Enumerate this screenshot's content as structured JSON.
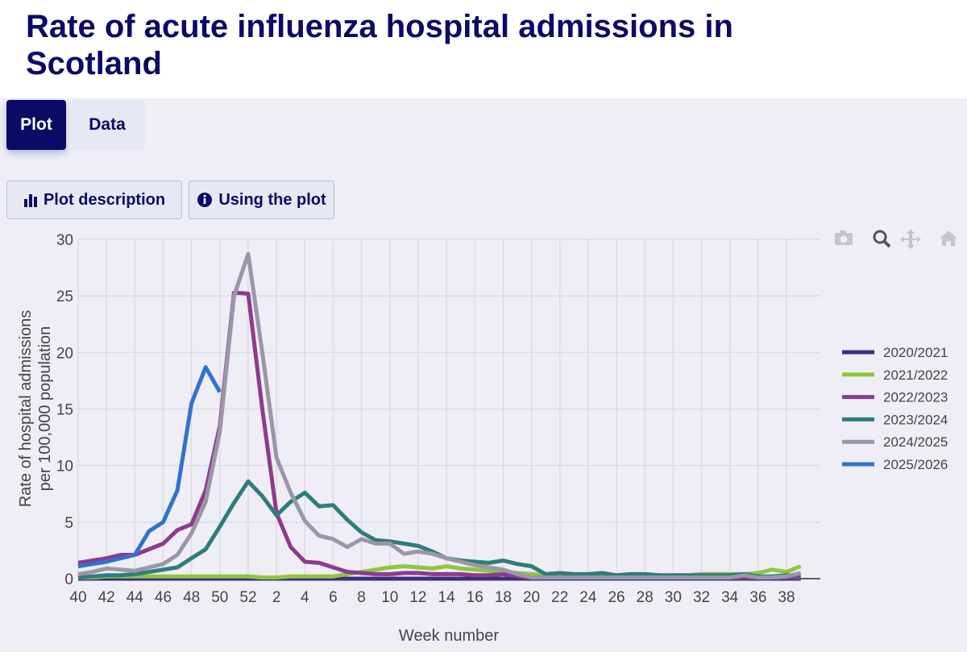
{
  "page": {
    "title": "Rate of acute influenza hospital admissions in Scotland",
    "tabs": [
      "Plot",
      "Data"
    ],
    "buttons": [
      "Plot description",
      "Using the plot"
    ]
  },
  "chart_data": {
    "type": "line",
    "ylabel": [
      "Rate of hospital admissions",
      "per 100,000 population"
    ],
    "xlabel": "Week number",
    "categories": [
      40,
      41,
      42,
      43,
      44,
      45,
      46,
      47,
      48,
      49,
      50,
      51,
      52,
      1,
      2,
      3,
      4,
      5,
      6,
      7,
      8,
      9,
      10,
      11,
      12,
      13,
      14,
      15,
      16,
      17,
      18,
      19,
      20,
      21,
      22,
      23,
      24,
      25,
      26,
      27,
      28,
      29,
      30,
      31,
      32,
      33,
      34,
      35,
      36,
      37,
      38,
      39
    ],
    "xticks": [
      40,
      42,
      44,
      46,
      48,
      50,
      52,
      2,
      4,
      6,
      8,
      10,
      12,
      14,
      16,
      18,
      20,
      22,
      24,
      26,
      28,
      30,
      32,
      34,
      36,
      38
    ],
    "ylim": [
      0,
      30
    ],
    "yticks": [
      0,
      5,
      10,
      15,
      20,
      25,
      30
    ],
    "grid": true,
    "legend": "right",
    "series": [
      {
        "name": "2020/2021",
        "color": "#3a2f80",
        "values": [
          0,
          0,
          0,
          0,
          0,
          0,
          0,
          0,
          0,
          0,
          0,
          0,
          0,
          0,
          0,
          0,
          0,
          0,
          0,
          0,
          0,
          0,
          0,
          0,
          0,
          0,
          0,
          0,
          0,
          0,
          0,
          0,
          0,
          0,
          0,
          0,
          0,
          0,
          0,
          0,
          0,
          0,
          0,
          0,
          0,
          0,
          0,
          0,
          0,
          0,
          0,
          0
        ]
      },
      {
        "name": "2021/2022",
        "color": "#8dc63f",
        "values": [
          0.1,
          0.1,
          0.2,
          0.2,
          0.2,
          0.2,
          0.2,
          0.2,
          0.2,
          0.2,
          0.2,
          0.2,
          0.2,
          0.1,
          0.1,
          0.2,
          0.2,
          0.2,
          0.2,
          0.4,
          0.6,
          0.8,
          1.0,
          1.1,
          1.0,
          0.9,
          1.1,
          0.9,
          0.8,
          0.7,
          0.6,
          0.5,
          0.4,
          0.3,
          0.2,
          0.2,
          0.2,
          0.2,
          0.2,
          0.2,
          0.2,
          0.2,
          0.3,
          0.3,
          0.4,
          0.4,
          0.4,
          0.4,
          0.5,
          0.8,
          0.6,
          1.1
        ]
      },
      {
        "name": "2022/2023",
        "color": "#8e3a8e",
        "values": [
          1.4,
          1.6,
          1.8,
          2.1,
          2.1,
          2.6,
          3.1,
          4.3,
          4.8,
          7.8,
          13.5,
          25.3,
          25.2,
          15,
          5.8,
          2.8,
          1.5,
          1.4,
          1.0,
          0.6,
          0.5,
          0.4,
          0.4,
          0.5,
          0.5,
          0.4,
          0.4,
          0.4,
          0.3,
          0.3,
          0.4,
          0.2,
          0.1,
          0.1,
          0.1,
          0.1,
          0.1,
          0.1,
          0.1,
          0.1,
          0.1,
          0.1,
          0.1,
          0.1,
          0.1,
          0.1,
          0.1,
          0.1,
          0.1,
          0.1,
          0.1,
          0.1
        ]
      },
      {
        "name": "2023/2024",
        "color": "#2e7d7a",
        "values": [
          0.1,
          0.2,
          0.3,
          0.3,
          0.4,
          0.6,
          0.8,
          1.0,
          1.8,
          2.6,
          4.6,
          6.7,
          8.6,
          7.3,
          5.6,
          6.8,
          7.6,
          6.4,
          6.5,
          5.2,
          4.1,
          3.4,
          3.3,
          3.1,
          2.9,
          2.4,
          1.8,
          1.6,
          1.5,
          1.4,
          1.6,
          1.3,
          1.1,
          0.4,
          0.5,
          0.4,
          0.4,
          0.5,
          0.3,
          0.4,
          0.4,
          0.3,
          0.3,
          0.3,
          0.3,
          0.3,
          0.3,
          0.4,
          0.2,
          0.2,
          0.3,
          0.3
        ]
      },
      {
        "name": "2024/2025",
        "color": "#9a96a8",
        "values": [
          0.4,
          0.6,
          0.9,
          0.8,
          0.7,
          1.0,
          1.3,
          2.1,
          4.0,
          6.8,
          13,
          25,
          28.7,
          20,
          10.7,
          7.6,
          5.1,
          3.8,
          3.5,
          2.8,
          3.5,
          3.1,
          3.1,
          2.2,
          2.4,
          2.2,
          1.8,
          1.5,
          1.2,
          1.0,
          0.8,
          0.4,
          0.1,
          0.1,
          0.1,
          0.1,
          0.1,
          0.1,
          0.1,
          0.1,
          0.1,
          0.1,
          0.1,
          0.1,
          0.1,
          0.1,
          0.1,
          0.3,
          0.1,
          0.1,
          0.2,
          0.5
        ]
      },
      {
        "name": "2025/2026",
        "color": "#2f72d0",
        "values": [
          1.1,
          1.3,
          1.5,
          1.8,
          2.1,
          4.2,
          5.0,
          7.8,
          15.5,
          18.7,
          16.5,
          null,
          null,
          null,
          null,
          null,
          null,
          null,
          null,
          null,
          null,
          null,
          null,
          null,
          null,
          null,
          null,
          null,
          null,
          null,
          null,
          null,
          null,
          null,
          null,
          null,
          null,
          null,
          null,
          null,
          null,
          null,
          null,
          null,
          null,
          null,
          null,
          null,
          null,
          null,
          null,
          null
        ]
      }
    ]
  }
}
